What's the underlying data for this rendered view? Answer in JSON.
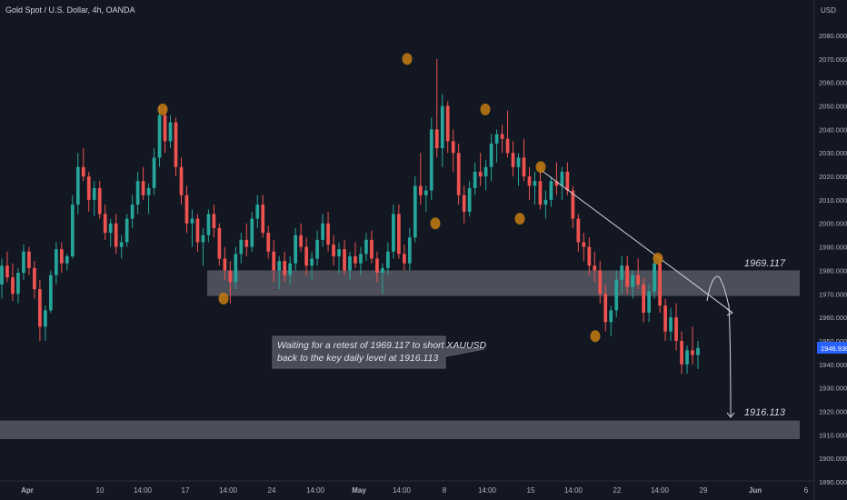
{
  "header": {
    "title": "Gold Spot / U.S. Dollar, 4h, OANDA"
  },
  "price_axis": {
    "currency": "USD",
    "ticks": [
      "2080.000",
      "2070.000",
      "2060.000",
      "2050.000",
      "2040.000",
      "2030.000",
      "2020.000",
      "2010.000",
      "2000.000",
      "1990.000",
      "1980.000",
      "1970.000",
      "1960.000",
      "1950.000",
      "1940.000",
      "1930.000",
      "1920.000",
      "1910.000",
      "1900.000",
      "1890.000"
    ],
    "last_price": "1946.930"
  },
  "time_axis": {
    "ticks": [
      "Apr",
      "10",
      "14:00",
      "17",
      "14:00",
      "24",
      "14:00",
      "May",
      "14:00",
      "8",
      "14:00",
      "15",
      "14:00",
      "22",
      "14:00",
      "29",
      "Jun",
      "6"
    ]
  },
  "annotations": {
    "zone_upper_label": "1969.117",
    "zone_lower_label": "1916.113",
    "callout_line1": "Waiting for a retest of 1969.117 to short XAUUSD",
    "callout_line2": "back to the key daily level at 1916.113"
  },
  "colors": {
    "background": "#131722",
    "up_candle": "#26a69a",
    "down_candle": "#ef5350",
    "swing_marker": "#c77c12",
    "zone": "#7b7e89",
    "last_price_badge": "#2962ff"
  },
  "chart_data": {
    "type": "candlestick",
    "symbol": "XAUUSD",
    "timeframe": "4h",
    "ylim": [
      1885,
      2090
    ],
    "zones": [
      {
        "label": "1969.117",
        "low": 1969.1,
        "high": 1980.0
      },
      {
        "label": "1916.113",
        "low": 1908.2,
        "high": 1916.1
      }
    ],
    "swing_points": [
      {
        "time": "Apr 13",
        "price": 2048.5
      },
      {
        "time": "Apr 19",
        "price": 1968.0
      },
      {
        "time": "May 4",
        "price": 2070.0
      },
      {
        "time": "May 9",
        "price": 2000.0
      },
      {
        "time": "May 12",
        "price": 2048.5
      },
      {
        "time": "May 15",
        "price": 2002.0
      },
      {
        "time": "May 16",
        "price": 2024.0
      },
      {
        "time": "May 19",
        "price": 1952.0
      },
      {
        "time": "May 24",
        "price": 1985.0
      }
    ],
    "trendline": {
      "from": {
        "time": "May 16",
        "price": 2022.5
      },
      "to": {
        "time": "Jun 3",
        "price": 1962.0
      }
    },
    "path_points": [
      {
        "price": 1967.0
      },
      {
        "price": 1975.0
      },
      {
        "price": 1975.0
      },
      {
        "price": 1965.0
      },
      {
        "price": 1917.5
      }
    ],
    "candles": [
      [
        1974,
        1985,
        1968,
        1982
      ],
      [
        1982,
        1988,
        1975,
        1977
      ],
      [
        1977,
        1983,
        1967,
        1970
      ],
      [
        1970,
        1981,
        1966,
        1979
      ],
      [
        1979,
        1991,
        1976,
        1988
      ],
      [
        1988,
        1990,
        1978,
        1981
      ],
      [
        1981,
        1984,
        1968,
        1972
      ],
      [
        1972,
        1976,
        1950,
        1956
      ],
      [
        1956,
        1965,
        1950,
        1963
      ],
      [
        1963,
        1980,
        1962,
        1978
      ],
      [
        1978,
        1992,
        1974,
        1989
      ],
      [
        1989,
        1992,
        1979,
        1983
      ],
      [
        1983,
        1987,
        1980,
        1986
      ],
      [
        1986,
        2012,
        1985,
        2008
      ],
      [
        2008,
        2030,
        2004,
        2024
      ],
      [
        2024,
        2032,
        2018,
        2020
      ],
      [
        2020,
        2022,
        2005,
        2010
      ],
      [
        2010,
        2018,
        2003,
        2015
      ],
      [
        2015,
        2018,
        2002,
        2004
      ],
      [
        2004,
        2008,
        1993,
        1996
      ],
      [
        1996,
        2002,
        1990,
        2000
      ],
      [
        2000,
        2004,
        1987,
        1990
      ],
      [
        1990,
        1995,
        1985,
        1992
      ],
      [
        1992,
        2004,
        1990,
        2002
      ],
      [
        2002,
        2012,
        1998,
        2008
      ],
      [
        2008,
        2022,
        2004,
        2018
      ],
      [
        2018,
        2024,
        2010,
        2012
      ],
      [
        2012,
        2017,
        2004,
        2015
      ],
      [
        2015,
        2032,
        2012,
        2028
      ],
      [
        2028,
        2050,
        2024,
        2046
      ],
      [
        2046,
        2050,
        2030,
        2035
      ],
      [
        2035,
        2046,
        2032,
        2043
      ],
      [
        2043,
        2045,
        2020,
        2024
      ],
      [
        2024,
        2028,
        2008,
        2012
      ],
      [
        2012,
        2016,
        1996,
        2000
      ],
      [
        2000,
        2006,
        1990,
        2002
      ],
      [
        2002,
        2004,
        1988,
        1992
      ],
      [
        1992,
        1998,
        1982,
        1995
      ],
      [
        1995,
        2006,
        1992,
        2004
      ],
      [
        2004,
        2008,
        1994,
        1998
      ],
      [
        1998,
        2000,
        1982,
        1985
      ],
      [
        1985,
        1990,
        1976,
        1980
      ],
      [
        1980,
        1984,
        1966,
        1975
      ],
      [
        1975,
        1990,
        1972,
        1987
      ],
      [
        1987,
        1996,
        1983,
        1993
      ],
      [
        1993,
        2000,
        1986,
        1990
      ],
      [
        1990,
        2005,
        1988,
        2002
      ],
      [
        2002,
        2012,
        1998,
        2008
      ],
      [
        2008,
        2012,
        1994,
        1996
      ],
      [
        1996,
        1999,
        1985,
        1988
      ],
      [
        1988,
        1993,
        1975,
        1980
      ],
      [
        1980,
        1986,
        1972,
        1984
      ],
      [
        1984,
        1988,
        1975,
        1978
      ],
      [
        1978,
        1986,
        1974,
        1983
      ],
      [
        1983,
        1998,
        1980,
        1995
      ],
      [
        1995,
        2000,
        1988,
        1990
      ],
      [
        1990,
        1994,
        1978,
        1982
      ],
      [
        1982,
        1988,
        1976,
        1985
      ],
      [
        1985,
        1997,
        1982,
        1993
      ],
      [
        1993,
        2004,
        1990,
        2000
      ],
      [
        2000,
        2005,
        1988,
        1991
      ],
      [
        1991,
        1995,
        1982,
        1986
      ],
      [
        1986,
        1992,
        1979,
        1989
      ],
      [
        1989,
        1993,
        1978,
        1980
      ],
      [
        1980,
        1988,
        1976,
        1986
      ],
      [
        1986,
        1992,
        1981,
        1983
      ],
      [
        1983,
        1990,
        1978,
        1987
      ],
      [
        1987,
        1996,
        1984,
        1993
      ],
      [
        1993,
        1997,
        1983,
        1985
      ],
      [
        1985,
        1988,
        1975,
        1979
      ],
      [
        1979,
        1983,
        1970,
        1981
      ],
      [
        1981,
        1992,
        1978,
        1988
      ],
      [
        1988,
        2008,
        1985,
        2004
      ],
      [
        2004,
        2008,
        1985,
        1987
      ],
      [
        1987,
        1991,
        1980,
        1983
      ],
      [
        1983,
        1998,
        1980,
        1994
      ],
      [
        1994,
        2020,
        1992,
        2016
      ],
      [
        2016,
        2030,
        2008,
        2012
      ],
      [
        2012,
        2016,
        2005,
        2014
      ],
      [
        2014,
        2045,
        2010,
        2040
      ],
      [
        2040,
        2070,
        2028,
        2032
      ],
      [
        2032,
        2055,
        2024,
        2050
      ],
      [
        2050,
        2052,
        2030,
        2035
      ],
      [
        2035,
        2040,
        2022,
        2030
      ],
      [
        2030,
        2034,
        2008,
        2012
      ],
      [
        2012,
        2016,
        2000,
        2005
      ],
      [
        2005,
        2018,
        2003,
        2015
      ],
      [
        2015,
        2026,
        2012,
        2022
      ],
      [
        2022,
        2030,
        2016,
        2020
      ],
      [
        2020,
        2027,
        2014,
        2024
      ],
      [
        2024,
        2038,
        2018,
        2034
      ],
      [
        2034,
        2040,
        2026,
        2038
      ],
      [
        2038,
        2042,
        2030,
        2036
      ],
      [
        2036,
        2048,
        2028,
        2030
      ],
      [
        2030,
        2035,
        2020,
        2024
      ],
      [
        2024,
        2030,
        2016,
        2028
      ],
      [
        2028,
        2036,
        2018,
        2020
      ],
      [
        2020,
        2024,
        2010,
        2016
      ],
      [
        2016,
        2022,
        2008,
        2018
      ],
      [
        2018,
        2025,
        2006,
        2008
      ],
      [
        2008,
        2014,
        2002,
        2010
      ],
      [
        2010,
        2020,
        2007,
        2018
      ],
      [
        2018,
        2026,
        2012,
        2016
      ],
      [
        2016,
        2024,
        2010,
        2022
      ],
      [
        2022,
        2026,
        2012,
        2014
      ],
      [
        2014,
        2016,
        1998,
        2002
      ],
      [
        2002,
        2004,
        1988,
        1992
      ],
      [
        1992,
        1996,
        1984,
        1990
      ],
      [
        1990,
        1994,
        1978,
        1982
      ],
      [
        1982,
        1988,
        1975,
        1980
      ],
      [
        1980,
        1984,
        1966,
        1970
      ],
      [
        1970,
        1974,
        1954,
        1958
      ],
      [
        1958,
        1965,
        1952,
        1963
      ],
      [
        1963,
        1980,
        1960,
        1976
      ],
      [
        1976,
        1986,
        1970,
        1982
      ],
      [
        1982,
        1986,
        1970,
        1973
      ],
      [
        1973,
        1980,
        1968,
        1978
      ],
      [
        1978,
        1985,
        1972,
        1974
      ],
      [
        1974,
        1977,
        1958,
        1962
      ],
      [
        1962,
        1974,
        1958,
        1971
      ],
      [
        1971,
        1986,
        1968,
        1983
      ],
      [
        1983,
        1986,
        1962,
        1965
      ],
      [
        1965,
        1968,
        1950,
        1954
      ],
      [
        1954,
        1964,
        1950,
        1960
      ],
      [
        1960,
        1966,
        1946,
        1950
      ],
      [
        1950,
        1954,
        1936,
        1940
      ],
      [
        1940,
        1948,
        1936,
        1946
      ],
      [
        1946,
        1956,
        1940,
        1944
      ],
      [
        1944,
        1950,
        1938,
        1947
      ]
    ]
  }
}
